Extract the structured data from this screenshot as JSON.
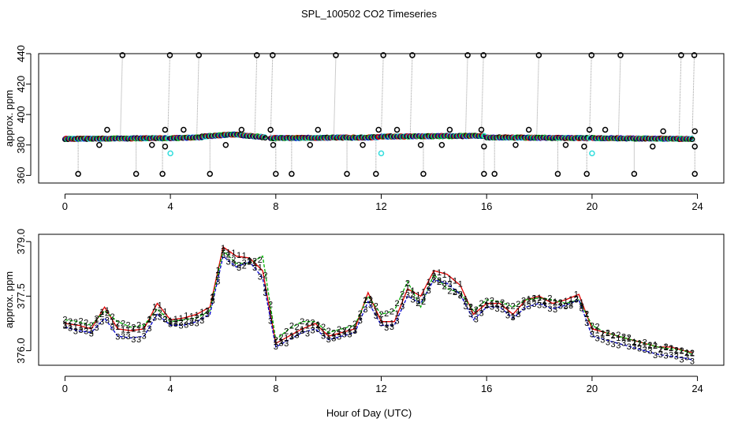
{
  "page_title": "SPL_100502  CO2 Timeseries",
  "colors": {
    "black": "#000000",
    "red": "#e00000",
    "green": "#00b000",
    "blue": "#0000cc",
    "cyan": "#33dddd",
    "grey": "#9a9a9a"
  },
  "chart_data": [
    {
      "type": "scatter",
      "title": "SPL_100502  CO2 Timeseries",
      "xlabel": "",
      "ylabel": "approx. ppm",
      "xlim": [
        -1,
        25
      ],
      "ylim": [
        355,
        440
      ],
      "x_ticks": [
        0,
        4,
        8,
        12,
        16,
        20,
        24
      ],
      "y_ticks": [
        360,
        380,
        400,
        420,
        440
      ],
      "grid": false,
      "baseline_segments": [
        {
          "x": [
            0.0,
            3.9
          ],
          "y": [
            384.0,
            384.5
          ]
        },
        {
          "x": [
            4.0,
            5.2
          ],
          "y": [
            384.5,
            385.0
          ]
        },
        {
          "x": [
            5.2,
            6.4
          ],
          "y": [
            385.5,
            387.0
          ]
        },
        {
          "x": [
            6.4,
            7.6
          ],
          "y": [
            387.0,
            385.0
          ]
        },
        {
          "x": [
            7.8,
            11.9
          ],
          "y": [
            384.5,
            385.0
          ]
        },
        {
          "x": [
            12.0,
            15.9
          ],
          "y": [
            385.5,
            386.0
          ]
        },
        {
          "x": [
            16.0,
            19.9
          ],
          "y": [
            385.0,
            384.5
          ]
        },
        {
          "x": [
            20.0,
            23.8
          ],
          "y": [
            384.5,
            384.0
          ]
        }
      ],
      "spikes_high": [
        2.1,
        3.9,
        5.0,
        7.2,
        7.8,
        10.2,
        12.0,
        13.1,
        15.2,
        15.8,
        17.9,
        19.9,
        21.0,
        23.3,
        23.8
      ],
      "spikes_low": [
        0.5,
        2.7,
        3.7,
        5.5,
        8.0,
        8.6,
        10.7,
        11.8,
        13.6,
        15.9,
        16.3,
        18.7,
        19.8,
        21.6,
        23.9
      ],
      "mid_high_points": [
        {
          "x": 1.6,
          "y": 390
        },
        {
          "x": 3.8,
          "y": 390
        },
        {
          "x": 4.5,
          "y": 390
        },
        {
          "x": 6.7,
          "y": 390
        },
        {
          "x": 7.8,
          "y": 390
        },
        {
          "x": 9.6,
          "y": 390
        },
        {
          "x": 11.9,
          "y": 390
        },
        {
          "x": 12.6,
          "y": 390
        },
        {
          "x": 14.6,
          "y": 390
        },
        {
          "x": 15.8,
          "y": 390
        },
        {
          "x": 17.6,
          "y": 390
        },
        {
          "x": 19.9,
          "y": 390
        },
        {
          "x": 20.5,
          "y": 390
        },
        {
          "x": 22.7,
          "y": 389
        },
        {
          "x": 23.9,
          "y": 389
        }
      ],
      "mid_low_points": [
        {
          "x": 1.3,
          "y": 380
        },
        {
          "x": 3.3,
          "y": 380
        },
        {
          "x": 3.8,
          "y": 379
        },
        {
          "x": 6.1,
          "y": 380
        },
        {
          "x": 7.9,
          "y": 380
        },
        {
          "x": 9.3,
          "y": 380
        },
        {
          "x": 11.3,
          "y": 380
        },
        {
          "x": 13.5,
          "y": 380
        },
        {
          "x": 14.3,
          "y": 380
        },
        {
          "x": 15.9,
          "y": 379
        },
        {
          "x": 17.1,
          "y": 380
        },
        {
          "x": 19.0,
          "y": 380
        },
        {
          "x": 19.7,
          "y": 379
        },
        {
          "x": 22.3,
          "y": 379
        },
        {
          "x": 23.9,
          "y": 379
        }
      ],
      "cyan_points": [
        {
          "x": 4.0,
          "y": 374.5
        },
        {
          "x": 12.0,
          "y": 374.5
        },
        {
          "x": 20.0,
          "y": 374.5
        }
      ]
    },
    {
      "type": "line",
      "title": "",
      "xlabel": "Hour of Day (UTC)",
      "ylabel": "approx. ppm",
      "xlim": [
        -1,
        25
      ],
      "ylim": [
        375.6,
        379.2
      ],
      "x_ticks": [
        0,
        4,
        8,
        12,
        16,
        20,
        24
      ],
      "y_ticks": [
        376.0,
        377.5,
        379.0
      ],
      "grid": false,
      "series_labels": [
        "1",
        "2",
        "3"
      ],
      "x": [
        0.0,
        0.5,
        1.0,
        1.5,
        2.0,
        2.5,
        3.0,
        3.5,
        4.0,
        4.5,
        5.0,
        5.5,
        6.0,
        6.5,
        7.0,
        7.5,
        8.0,
        8.5,
        9.0,
        9.5,
        10.0,
        10.5,
        11.0,
        11.5,
        12.0,
        12.5,
        13.0,
        13.5,
        14.0,
        14.5,
        15.0,
        15.5,
        16.0,
        16.5,
        17.0,
        17.5,
        18.0,
        18.5,
        19.0,
        19.5,
        20.0,
        20.5,
        21.0,
        21.5,
        22.0,
        22.5,
        23.0,
        23.5,
        23.8
      ],
      "series": [
        {
          "name": "1",
          "values": [
            376.75,
            376.7,
            376.6,
            377.2,
            376.6,
            376.55,
            376.6,
            377.3,
            376.85,
            376.9,
            377.0,
            377.2,
            378.85,
            378.6,
            378.55,
            378.2,
            376.2,
            376.4,
            376.6,
            376.75,
            376.4,
            376.5,
            376.6,
            377.6,
            376.8,
            376.8,
            377.7,
            377.5,
            378.2,
            378.1,
            377.8,
            377.0,
            377.3,
            377.3,
            377.0,
            377.4,
            377.5,
            377.3,
            377.4,
            377.55,
            376.6,
            376.5,
            376.4,
            376.3,
            376.2,
            376.1,
            376.1,
            376.0,
            375.95
          ]
        },
        {
          "name": "2",
          "values": [
            376.85,
            376.8,
            376.7,
            377.1,
            376.8,
            376.65,
            376.7,
            377.15,
            376.8,
            376.85,
            376.9,
            377.1,
            378.75,
            378.4,
            378.4,
            378.6,
            376.3,
            376.6,
            376.8,
            376.8,
            376.5,
            376.6,
            376.7,
            377.5,
            377.0,
            377.1,
            377.9,
            377.2,
            378.1,
            377.7,
            377.6,
            377.1,
            377.4,
            377.35,
            377.2,
            377.4,
            377.45,
            377.4,
            377.3,
            377.4,
            376.7,
            376.5,
            376.4,
            376.3,
            376.2,
            376.1,
            376.05,
            376.0,
            375.9
          ]
        },
        {
          "name": "3",
          "values": [
            376.65,
            376.55,
            376.5,
            376.9,
            376.4,
            376.35,
            376.4,
            377.0,
            376.7,
            376.7,
            376.8,
            377.0,
            378.6,
            378.3,
            378.45,
            378.0,
            376.1,
            376.3,
            376.5,
            376.6,
            376.3,
            376.4,
            376.5,
            377.35,
            376.7,
            376.7,
            377.5,
            377.3,
            377.95,
            377.85,
            377.55,
            376.85,
            377.2,
            377.2,
            376.9,
            377.2,
            377.3,
            377.15,
            377.25,
            377.4,
            376.4,
            376.3,
            376.2,
            376.1,
            376.0,
            375.9,
            375.85,
            375.8,
            375.75
          ]
        }
      ]
    }
  ]
}
